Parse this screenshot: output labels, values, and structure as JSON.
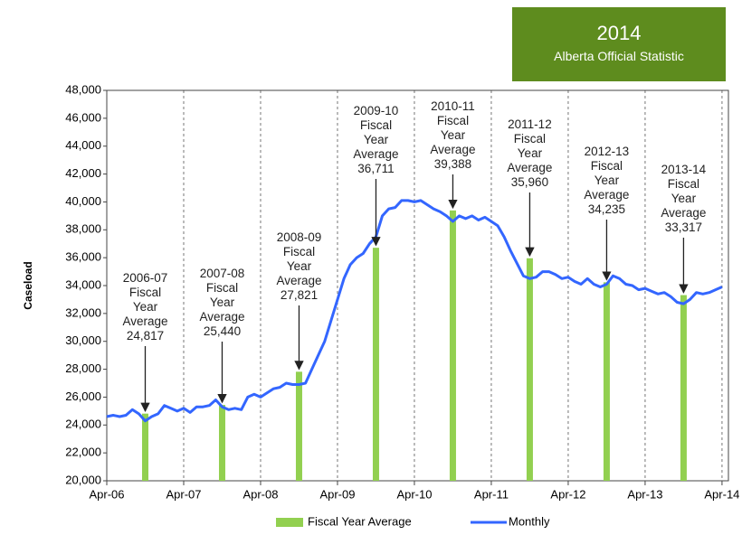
{
  "chart_data": {
    "type": "bar-line",
    "badge": {
      "year": "2014",
      "text": "Alberta Official Statistic"
    },
    "ylabel": "Caseload",
    "xlim": [
      "2006-04",
      "2014-05"
    ],
    "xticks": [
      {
        "value": "2006-04",
        "label": "Apr-06"
      },
      {
        "value": "2007-04",
        "label": "Apr-07"
      },
      {
        "value": "2008-04",
        "label": "Apr-08"
      },
      {
        "value": "2009-04",
        "label": "Apr-09"
      },
      {
        "value": "2010-04",
        "label": "Apr-10"
      },
      {
        "value": "2011-04",
        "label": "Apr-11"
      },
      {
        "value": "2012-04",
        "label": "Apr-12"
      },
      {
        "value": "2013-04",
        "label": "Apr-13"
      },
      {
        "value": "2014-04",
        "label": "Apr-14"
      }
    ],
    "ylim": [
      20000,
      48000
    ],
    "yticks": [
      {
        "value": 20000,
        "label": "20,000"
      },
      {
        "value": 22000,
        "label": "22,000"
      },
      {
        "value": 24000,
        "label": "24,000"
      },
      {
        "value": 26000,
        "label": "26,000"
      },
      {
        "value": 28000,
        "label": "28,000"
      },
      {
        "value": 30000,
        "label": "30,000"
      },
      {
        "value": 32000,
        "label": "32,000"
      },
      {
        "value": 34000,
        "label": "34,000"
      },
      {
        "value": 36000,
        "label": "36,000"
      },
      {
        "value": 38000,
        "label": "38,000"
      },
      {
        "value": 40000,
        "label": "40,000"
      },
      {
        "value": 42000,
        "label": "42,000"
      },
      {
        "value": 44000,
        "label": "44,000"
      },
      {
        "value": 46000,
        "label": "46,000"
      },
      {
        "value": 48000,
        "label": "48,000"
      }
    ],
    "grid": "vertical-dashed",
    "series": [
      {
        "name": "Fiscal Year Average",
        "type": "bar",
        "color": "#92d050",
        "categories": [
          "2006-07",
          "2007-08",
          "2008-09",
          "2009-10",
          "2010-11",
          "2011-12",
          "2012-13",
          "2013-14"
        ],
        "x": [
          "2006-10",
          "2007-10",
          "2008-10",
          "2009-10",
          "2010-10",
          "2011-10",
          "2012-10",
          "2013-10"
        ],
        "values": [
          24817,
          25440,
          27821,
          36711,
          39388,
          35960,
          34235,
          33317
        ],
        "value_labels": [
          "24,817",
          "25,440",
          "27,821",
          "36,711",
          "39,388",
          "35,960",
          "34,235",
          "33,317"
        ]
      },
      {
        "name": "Monthly",
        "type": "line",
        "color": "#3366ff",
        "x": [
          "2006-04",
          "2006-05",
          "2006-06",
          "2006-07",
          "2006-08",
          "2006-09",
          "2006-10",
          "2006-11",
          "2006-12",
          "2007-01",
          "2007-02",
          "2007-03",
          "2007-04",
          "2007-05",
          "2007-06",
          "2007-07",
          "2007-08",
          "2007-09",
          "2007-10",
          "2007-11",
          "2007-12",
          "2008-01",
          "2008-02",
          "2008-03",
          "2008-04",
          "2008-05",
          "2008-06",
          "2008-07",
          "2008-08",
          "2008-09",
          "2008-10",
          "2008-11",
          "2008-12",
          "2009-01",
          "2009-02",
          "2009-03",
          "2009-04",
          "2009-05",
          "2009-06",
          "2009-07",
          "2009-08",
          "2009-09",
          "2009-10",
          "2009-11",
          "2009-12",
          "2010-01",
          "2010-02",
          "2010-03",
          "2010-04",
          "2010-05",
          "2010-06",
          "2010-07",
          "2010-08",
          "2010-09",
          "2010-10",
          "2010-11",
          "2010-12",
          "2011-01",
          "2011-02",
          "2011-03",
          "2011-04",
          "2011-05",
          "2011-06",
          "2011-07",
          "2011-08",
          "2011-09",
          "2011-10",
          "2011-11",
          "2011-12",
          "2012-01",
          "2012-02",
          "2012-03",
          "2012-04",
          "2012-05",
          "2012-06",
          "2012-07",
          "2012-08",
          "2012-09",
          "2012-10",
          "2012-11",
          "2012-12",
          "2013-01",
          "2013-02",
          "2013-03",
          "2013-04",
          "2013-05",
          "2013-06",
          "2013-07",
          "2013-08",
          "2013-09",
          "2013-10",
          "2013-11",
          "2013-12",
          "2014-01",
          "2014-02",
          "2014-03",
          "2014-04"
        ],
        "values": [
          24600,
          24700,
          24600,
          24700,
          25100,
          24800,
          24300,
          24600,
          24800,
          25400,
          25200,
          25000,
          25200,
          24900,
          25300,
          25300,
          25400,
          25800,
          25300,
          25100,
          25200,
          25100,
          26000,
          26200,
          26000,
          26300,
          26600,
          26700,
          27000,
          26900,
          26900,
          27000,
          28000,
          29000,
          30000,
          31500,
          33000,
          34500,
          35500,
          36000,
          36300,
          37000,
          37500,
          39000,
          39500,
          39600,
          40100,
          40100,
          40000,
          40100,
          39800,
          39500,
          39300,
          39000,
          38600,
          39000,
          38800,
          39000,
          38700,
          38900,
          38600,
          38300,
          37500,
          36500,
          35600,
          34700,
          34500,
          34600,
          35000,
          35000,
          34800,
          34500,
          34600,
          34300,
          34100,
          34500,
          34100,
          33900,
          34100,
          34700,
          34500,
          34100,
          34000,
          33700,
          33800,
          33600,
          33400,
          33500,
          33200,
          32800,
          32700,
          33000,
          33500,
          33400,
          33500,
          33700,
          33900
        ]
      }
    ]
  }
}
